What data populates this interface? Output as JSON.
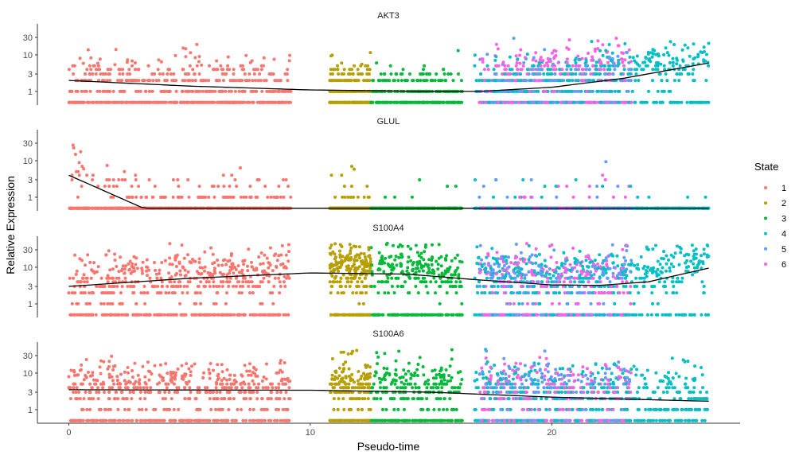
{
  "chart_data": {
    "type": "scatter",
    "xlabel": "Pseudo-time",
    "ylabel": "Relative Expression",
    "x_ticks": [
      0,
      10,
      20
    ],
    "xlim": [
      -1.3,
      27.8
    ],
    "y_scale": "log",
    "y_ticks": [
      1,
      3,
      10,
      30
    ],
    "ylim": [
      0.42,
      45
    ],
    "grid": false,
    "legend": {
      "title": "State",
      "position": "right",
      "entries": [
        {
          "label": "1",
          "color": "#F8766D"
        },
        {
          "label": "2",
          "color": "#B79F00"
        },
        {
          "label": "3",
          "color": "#00BA38"
        },
        {
          "label": "4",
          "color": "#00BFC4"
        },
        {
          "label": "5",
          "color": "#619CFF"
        },
        {
          "label": "6",
          "color": "#F564E3"
        }
      ]
    },
    "state_pseudotime_ranges": {
      "1": [
        0,
        9.2
      ],
      "2": [
        10.8,
        12.5
      ],
      "3": [
        12.5,
        16.3
      ],
      "4": [
        16.8,
        26.5
      ],
      "5": [
        17,
        23.3
      ],
      "6": [
        17,
        23.3
      ]
    },
    "panels": [
      {
        "gene": "AKT3",
        "trend": [
          [
            0,
            2
          ],
          [
            5,
            1.4
          ],
          [
            10,
            1.1
          ],
          [
            15,
            1.0
          ],
          [
            17,
            1.0
          ],
          [
            20,
            1.3
          ],
          [
            23,
            2.3
          ],
          [
            26.5,
            6
          ]
        ],
        "state_zero_fraction": {
          "1": 0.45,
          "2": 0.5,
          "3": 0.5,
          "4": 0.3,
          "5": 0.4,
          "6": 0.3
        },
        "state_level_factor": {
          "1": 1.3,
          "2": 1.5,
          "3": 1.3,
          "4": 1.6,
          "5": 1.5,
          "6": 2.5
        }
      },
      {
        "gene": "GLUL",
        "trend": [
          [
            0,
            4
          ],
          [
            3.1,
            0.5
          ],
          [
            26.5,
            0.5
          ]
        ],
        "state_zero_fraction": {
          "1": 0.8,
          "2": 0.93,
          "3": 0.97,
          "4": 0.96,
          "5": 0.97,
          "6": 0.96
        },
        "state_level_factor": {
          "1": 1.5,
          "2": 2,
          "3": 2,
          "4": 2,
          "5": 2,
          "6": 2
        }
      },
      {
        "gene": "S100A4",
        "trend": [
          [
            0,
            3
          ],
          [
            5,
            5
          ],
          [
            10,
            7
          ],
          [
            14,
            6.5
          ],
          [
            17,
            4.5
          ],
          [
            20,
            3.3
          ],
          [
            22,
            3.2
          ],
          [
            24,
            4
          ],
          [
            26.5,
            9.5
          ]
        ],
        "state_zero_fraction": {
          "1": 0.3,
          "2": 0.3,
          "3": 0.3,
          "4": 0.25,
          "5": 0.25,
          "6": 0.3
        },
        "state_level_factor": {
          "1": 1.2,
          "2": 1.3,
          "3": 1.3,
          "4": 1.6,
          "5": 1.8,
          "6": 1.5
        }
      },
      {
        "gene": "S100A6",
        "trend": [
          [
            0,
            3.5
          ],
          [
            10,
            3.4
          ],
          [
            15,
            3
          ],
          [
            20,
            2.2
          ],
          [
            26.5,
            1.7
          ]
        ],
        "state_zero_fraction": {
          "1": 0.3,
          "2": 0.3,
          "3": 0.3,
          "4": 0.3,
          "5": 0.25,
          "6": 0.3
        },
        "state_level_factor": {
          "1": 1.3,
          "2": 1.6,
          "3": 1.4,
          "4": 1.6,
          "5": 2,
          "6": 1.7
        }
      }
    ]
  }
}
